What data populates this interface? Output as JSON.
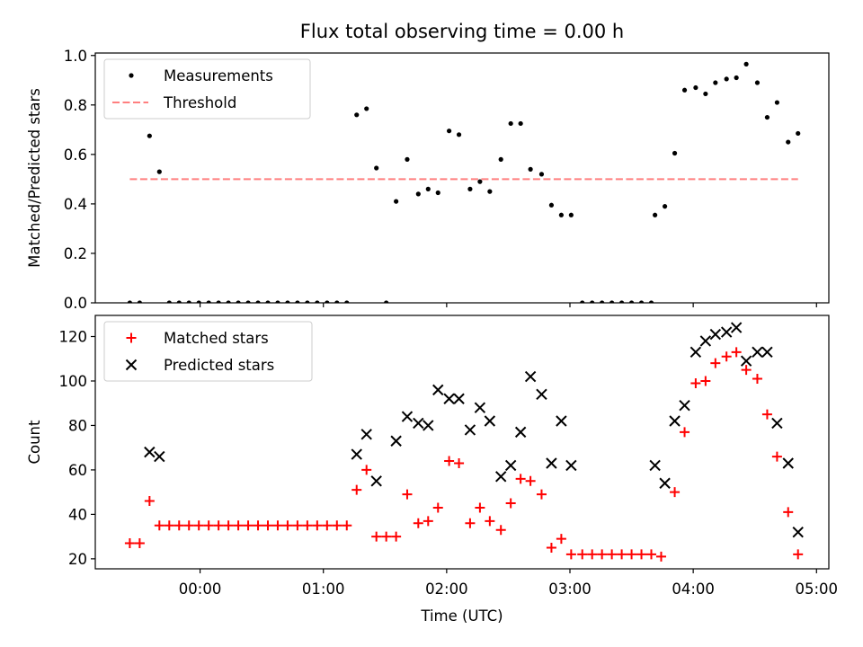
{
  "chart_data": {
    "title": "Flux total observing time = 0.00 h",
    "xlabel": "Time (UTC)",
    "x_unit": "hours since 00:00 UTC",
    "xlim": [
      -0.85,
      5.1
    ],
    "xticks": [
      {
        "value": 0,
        "label": "00:00"
      },
      {
        "value": 1,
        "label": "01:00"
      },
      {
        "value": 2,
        "label": "02:00"
      },
      {
        "value": 3,
        "label": "03:00"
      },
      {
        "value": 4,
        "label": "04:00"
      },
      {
        "value": 5,
        "label": "05:00"
      }
    ],
    "panels": [
      {
        "type": "scatter",
        "ylabel": "Matched/Predicted stars",
        "ylim": [
          0,
          1.01
        ],
        "yticks": [
          {
            "value": 0.0,
            "label": "0.0"
          },
          {
            "value": 0.2,
            "label": "0.2"
          },
          {
            "value": 0.4,
            "label": "0.4"
          },
          {
            "value": 0.6,
            "label": "0.6"
          },
          {
            "value": 0.8,
            "label": "0.8"
          },
          {
            "value": 1.0,
            "label": "1.0"
          }
        ],
        "legend_position": "top-left",
        "series": [
          {
            "name": "Measurements",
            "kind": "dots",
            "color": "#000000",
            "points": [
              [
                -0.57,
                0
              ],
              [
                -0.49,
                0
              ],
              [
                -0.41,
                0.675
              ],
              [
                -0.33,
                0.53
              ],
              [
                -0.25,
                0
              ],
              [
                -0.17,
                0
              ],
              [
                -0.09,
                0
              ],
              [
                -0.01,
                0
              ],
              [
                0.07,
                0
              ],
              [
                0.15,
                0
              ],
              [
                0.23,
                0
              ],
              [
                0.31,
                0
              ],
              [
                0.39,
                0
              ],
              [
                0.47,
                0
              ],
              [
                0.55,
                0
              ],
              [
                0.63,
                0
              ],
              [
                0.71,
                0
              ],
              [
                0.79,
                0
              ],
              [
                0.87,
                0
              ],
              [
                0.95,
                0
              ],
              [
                1.03,
                0
              ],
              [
                1.11,
                0
              ],
              [
                1.19,
                0
              ],
              [
                1.27,
                0.76
              ],
              [
                1.35,
                0.785
              ],
              [
                1.43,
                0.545
              ],
              [
                1.51,
                0
              ],
              [
                1.59,
                0.41
              ],
              [
                1.68,
                0.58
              ],
              [
                1.77,
                0.44
              ],
              [
                1.85,
                0.46
              ],
              [
                1.93,
                0.445
              ],
              [
                2.02,
                0.695
              ],
              [
                2.1,
                0.68
              ],
              [
                2.19,
                0.46
              ],
              [
                2.27,
                0.49
              ],
              [
                2.35,
                0.45
              ],
              [
                2.44,
                0.58
              ],
              [
                2.52,
                0.725
              ],
              [
                2.6,
                0.725
              ],
              [
                2.68,
                0.54
              ],
              [
                2.77,
                0.52
              ],
              [
                2.85,
                0.395
              ],
              [
                2.93,
                0.355
              ],
              [
                3.01,
                0.355
              ],
              [
                3.1,
                0
              ],
              [
                3.18,
                0
              ],
              [
                3.26,
                0
              ],
              [
                3.34,
                0
              ],
              [
                3.42,
                0
              ],
              [
                3.5,
                0
              ],
              [
                3.58,
                0
              ],
              [
                3.66,
                0
              ],
              [
                3.69,
                0.355
              ],
              [
                3.77,
                0.39
              ],
              [
                3.85,
                0.605
              ],
              [
                3.93,
                0.86
              ],
              [
                4.02,
                0.87
              ],
              [
                4.1,
                0.845
              ],
              [
                4.18,
                0.89
              ],
              [
                4.27,
                0.905
              ],
              [
                4.35,
                0.91
              ],
              [
                4.43,
                0.965
              ],
              [
                4.52,
                0.89
              ],
              [
                4.6,
                0.75
              ],
              [
                4.68,
                0.81
              ],
              [
                4.77,
                0.65
              ],
              [
                4.85,
                0.685
              ]
            ]
          },
          {
            "name": "Threshold",
            "kind": "dashed-line",
            "color": "#ff7f7f",
            "points": [
              [
                -0.57,
                0.5
              ],
              [
                4.85,
                0.5
              ]
            ]
          }
        ]
      },
      {
        "type": "scatter",
        "ylabel": "Count",
        "ylim": [
          15.5,
          129.5
        ],
        "yticks": [
          {
            "value": 20,
            "label": "20"
          },
          {
            "value": 40,
            "label": "40"
          },
          {
            "value": 60,
            "label": "60"
          },
          {
            "value": 80,
            "label": "80"
          },
          {
            "value": 100,
            "label": "100"
          },
          {
            "value": 120,
            "label": "120"
          }
        ],
        "legend_position": "top-left",
        "series": [
          {
            "name": "Matched stars",
            "kind": "plus",
            "color": "#ff0000",
            "points": [
              [
                -0.57,
                27
              ],
              [
                -0.49,
                27
              ],
              [
                -0.41,
                46
              ],
              [
                -0.33,
                35
              ],
              [
                -0.25,
                35
              ],
              [
                -0.17,
                35
              ],
              [
                -0.09,
                35
              ],
              [
                -0.01,
                35
              ],
              [
                0.07,
                35
              ],
              [
                0.15,
                35
              ],
              [
                0.23,
                35
              ],
              [
                0.31,
                35
              ],
              [
                0.39,
                35
              ],
              [
                0.47,
                35
              ],
              [
                0.55,
                35
              ],
              [
                0.63,
                35
              ],
              [
                0.71,
                35
              ],
              [
                0.79,
                35
              ],
              [
                0.87,
                35
              ],
              [
                0.95,
                35
              ],
              [
                1.03,
                35
              ],
              [
                1.11,
                35
              ],
              [
                1.19,
                35
              ],
              [
                1.27,
                51
              ],
              [
                1.35,
                60
              ],
              [
                1.43,
                30
              ],
              [
                1.51,
                30
              ],
              [
                1.59,
                30
              ],
              [
                1.68,
                49
              ],
              [
                1.77,
                36
              ],
              [
                1.85,
                37
              ],
              [
                1.93,
                43
              ],
              [
                2.02,
                64
              ],
              [
                2.1,
                63
              ],
              [
                2.19,
                36
              ],
              [
                2.27,
                43
              ],
              [
                2.35,
                37
              ],
              [
                2.44,
                33
              ],
              [
                2.52,
                45
              ],
              [
                2.6,
                56
              ],
              [
                2.68,
                55
              ],
              [
                2.77,
                49
              ],
              [
                2.85,
                25
              ],
              [
                2.93,
                29
              ],
              [
                3.01,
                22
              ],
              [
                3.1,
                22
              ],
              [
                3.18,
                22
              ],
              [
                3.26,
                22
              ],
              [
                3.34,
                22
              ],
              [
                3.42,
                22
              ],
              [
                3.5,
                22
              ],
              [
                3.58,
                22
              ],
              [
                3.66,
                22
              ],
              [
                3.74,
                21
              ],
              [
                3.85,
                50
              ],
              [
                3.93,
                77
              ],
              [
                4.02,
                99
              ],
              [
                4.1,
                100
              ],
              [
                4.18,
                108
              ],
              [
                4.27,
                111
              ],
              [
                4.35,
                113
              ],
              [
                4.43,
                105
              ],
              [
                4.52,
                101
              ],
              [
                4.6,
                85
              ],
              [
                4.68,
                66
              ],
              [
                4.77,
                41
              ],
              [
                4.85,
                22
              ]
            ]
          },
          {
            "name": "Predicted stars",
            "kind": "cross",
            "color": "#000000",
            "points": [
              [
                -0.41,
                68
              ],
              [
                -0.33,
                66
              ],
              [
                1.27,
                67
              ],
              [
                1.35,
                76
              ],
              [
                1.43,
                55
              ],
              [
                1.59,
                73
              ],
              [
                1.68,
                84
              ],
              [
                1.77,
                81
              ],
              [
                1.85,
                80
              ],
              [
                1.93,
                96
              ],
              [
                2.02,
                92
              ],
              [
                2.1,
                92
              ],
              [
                2.19,
                78
              ],
              [
                2.27,
                88
              ],
              [
                2.35,
                82
              ],
              [
                2.44,
                57
              ],
              [
                2.52,
                62
              ],
              [
                2.6,
                77
              ],
              [
                2.68,
                102
              ],
              [
                2.77,
                94
              ],
              [
                2.85,
                63
              ],
              [
                2.93,
                82
              ],
              [
                3.01,
                62
              ],
              [
                3.69,
                62
              ],
              [
                3.77,
                54
              ],
              [
                3.85,
                82
              ],
              [
                3.93,
                89
              ],
              [
                4.02,
                113
              ],
              [
                4.1,
                118
              ],
              [
                4.18,
                121
              ],
              [
                4.27,
                122
              ],
              [
                4.35,
                124
              ],
              [
                4.43,
                109
              ],
              [
                4.52,
                113
              ],
              [
                4.6,
                113
              ],
              [
                4.68,
                81
              ],
              [
                4.77,
                63
              ],
              [
                4.85,
                32
              ]
            ]
          }
        ]
      }
    ]
  }
}
